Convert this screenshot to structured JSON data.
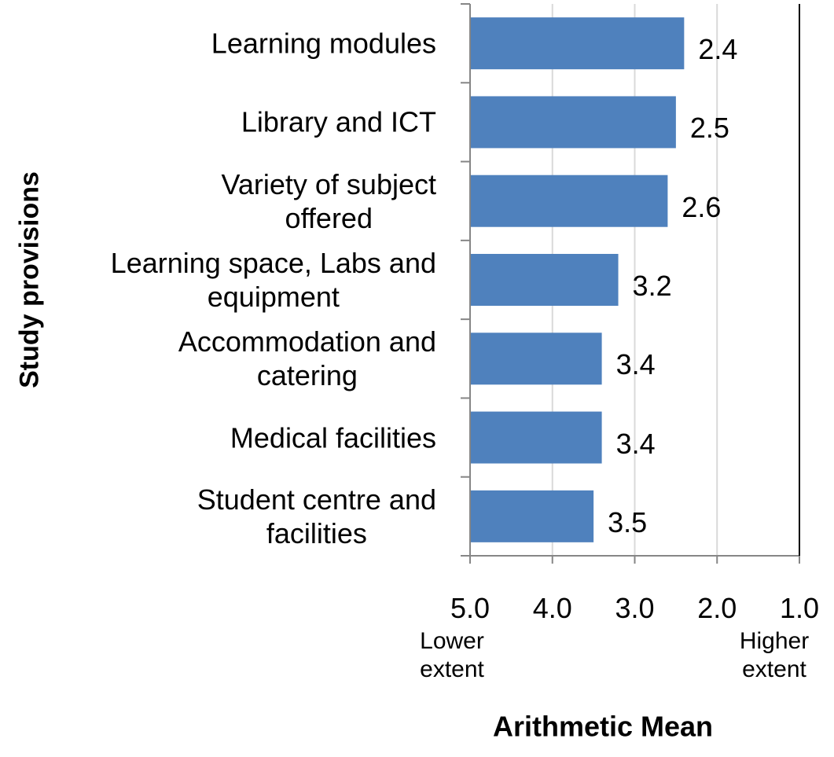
{
  "chart_data": {
    "type": "hbar",
    "categories": [
      "Learning modules",
      "Library and ICT",
      "Variety of subject\noffered",
      "Learning space, Labs and\nequipment",
      "Accommodation and\ncatering",
      "Medical facilities",
      "Student centre and\nfacilities"
    ],
    "values": [
      2.4,
      2.5,
      2.6,
      3.2,
      3.4,
      3.4,
      3.5
    ],
    "color": "#4f81bd",
    "xlim": [
      5,
      1
    ],
    "xticks": [
      {
        "value": 5,
        "label": "5.0"
      },
      {
        "value": 4,
        "label": "4.0"
      },
      {
        "value": 3,
        "label": "3.0"
      },
      {
        "value": 2,
        "label": "2.0"
      },
      {
        "value": 1,
        "label": "1.0"
      }
    ],
    "grid": true,
    "x_label": "Arithmetic Mean",
    "y_label": "Study provisions",
    "annotations": [
      "Lower\nextent",
      "Higher\nextent"
    ]
  }
}
